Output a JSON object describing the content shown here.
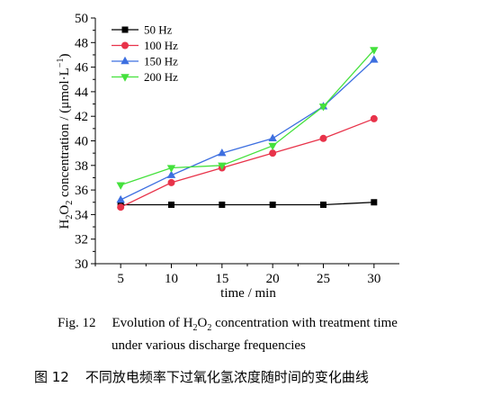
{
  "chart_data": {
    "type": "line",
    "xlabel": "time / min",
    "ylabel_main": "H",
    "ylabel_sub": "2",
    "ylabel_mid": "O",
    "ylabel_sub2": "2",
    "ylabel_rest": " concentration / (μmol·L",
    "ylabel_sup": "−1",
    "ylabel_end": ")",
    "xlim": [
      2.5,
      32.5
    ],
    "ylim": [
      30,
      50
    ],
    "x_ticks": [
      "5",
      "10",
      "15",
      "20",
      "25",
      "30"
    ],
    "y_ticks": [
      "30",
      "32",
      "34",
      "36",
      "38",
      "40",
      "42",
      "44",
      "46",
      "48",
      "50"
    ],
    "legend_position": "top-left",
    "x": [
      5,
      10,
      15,
      20,
      25,
      30
    ],
    "series": [
      {
        "name": "50 Hz",
        "color": "#000000",
        "marker": "square",
        "values": [
          34.8,
          34.8,
          34.8,
          34.8,
          34.8,
          35.0
        ]
      },
      {
        "name": "100 Hz",
        "color": "#e8334a",
        "marker": "circle",
        "values": [
          34.6,
          36.6,
          37.8,
          39.0,
          40.2,
          41.8
        ]
      },
      {
        "name": "150 Hz",
        "color": "#3d6fe0",
        "marker": "triangle-up",
        "values": [
          35.2,
          37.2,
          39.0,
          40.2,
          42.8,
          46.6
        ]
      },
      {
        "name": "200 Hz",
        "color": "#44e13c",
        "marker": "triangle-down",
        "values": [
          36.4,
          37.8,
          38.0,
          39.6,
          42.8,
          47.4
        ]
      }
    ]
  },
  "caption": {
    "en_fig": "Fig. 12",
    "en_line1_a": "Evolution of H",
    "en_line1_sub": "2",
    "en_line1_b": "O",
    "en_line1_sub2": "2",
    "en_line1_c": " concentration with treatment time",
    "en_line2": "under various discharge frequencies",
    "zh_fig": "图 12",
    "zh_text": "不同放电频率下过氧化氢浓度随时间的变化曲线"
  }
}
